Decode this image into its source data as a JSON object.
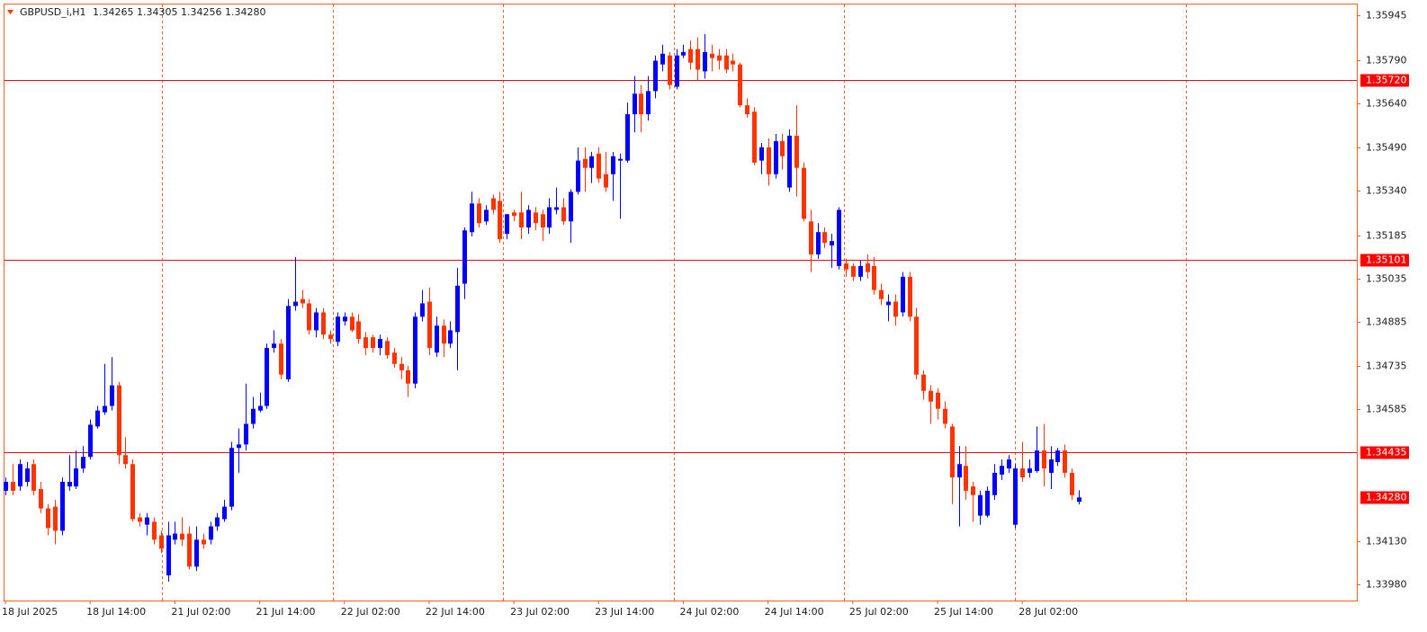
{
  "chart_data": {
    "type": "candlestick",
    "symbol": "GBPUSD_i,H1",
    "quote": "1.34265 1.34305 1.34256 1.34280",
    "categories": [
      "18 Jul 2025",
      null,
      null,
      null,
      null,
      null,
      null,
      null,
      null,
      null,
      null,
      null,
      "18 Jul 14:00",
      null,
      null,
      null,
      null,
      null,
      null,
      null,
      null,
      null,
      null,
      null,
      "21 Jul 02:00",
      null,
      null,
      null,
      null,
      null,
      null,
      null,
      null,
      null,
      null,
      null,
      "21 Jul 14:00",
      null,
      null,
      null,
      null,
      null,
      null,
      null,
      null,
      null,
      null,
      null,
      "22 Jul 02:00",
      null,
      null,
      null,
      null,
      null,
      null,
      null,
      null,
      null,
      null,
      null,
      "22 Jul 14:00",
      null,
      null,
      null,
      null,
      null,
      null,
      null,
      null,
      null,
      null,
      null,
      "23 Jul 02:00",
      null,
      null,
      null,
      null,
      null,
      null,
      null,
      null,
      null,
      null,
      null,
      "23 Jul 14:00",
      null,
      null,
      null,
      null,
      null,
      null,
      null,
      null,
      null,
      null,
      null,
      "24 Jul 02:00",
      null,
      null,
      null,
      null,
      null,
      null,
      null,
      null,
      null,
      null,
      null,
      "24 Jul 14:00",
      null,
      null,
      null,
      null,
      null,
      null,
      null,
      null,
      null,
      null,
      null,
      "25 Jul 02:00",
      null,
      null,
      null,
      null,
      null,
      null,
      null,
      null,
      null,
      null,
      null,
      "25 Jul 14:00",
      null,
      null,
      null,
      null,
      null,
      null,
      null,
      null,
      null,
      null,
      null,
      "28 Jul 02:00",
      null,
      null,
      null,
      null,
      null,
      null,
      null,
      null
    ],
    "open": [
      1.34303,
      1.34334,
      1.34318,
      1.34334,
      1.34395,
      1.34309,
      1.34242,
      1.34248,
      1.34165,
      1.34318,
      1.34318,
      1.3438,
      1.3442,
      1.34525,
      1.34574,
      1.34596,
      1.34667,
      1.34426,
      1.34395,
      1.34211,
      1.34186,
      1.34196,
      1.34149,
      1.34011,
      1.34134,
      1.34155,
      1.34155,
      1.34041,
      1.34134,
      1.34134,
      1.3418,
      1.34205,
      1.34248,
      1.34451,
      1.34463,
      1.34534,
      1.3458,
      1.34596,
      1.34796,
      1.34811,
      1.34688,
      1.34941,
      1.34965,
      1.3495,
      1.34857,
      1.34919,
      1.34842,
      1.34817,
      1.34888,
      1.34904,
      1.34888,
      1.34833,
      1.34833,
      1.34796,
      1.3482,
      1.3478,
      1.34741,
      1.34719,
      1.34673,
      1.34904,
      1.34956,
      1.3478,
      1.34873,
      1.34811,
      1.34851,
      1.35018,
      1.35196,
      1.35295,
      1.35233,
      1.35313,
      1.35304,
      1.3519,
      1.35264,
      1.35264,
      1.35212,
      1.35264,
      1.35258,
      1.35212,
      1.35273,
      1.35282,
      1.35233,
      1.35335,
      1.35449,
      1.35418,
      1.35467,
      1.35396,
      1.35396,
      1.35443,
      1.35443,
      1.35603,
      1.35674,
      1.35603,
      1.35683,
      1.35775,
      1.35806,
      1.35698,
      1.35806,
      1.35828,
      1.35828,
      1.35751,
      1.35812,
      1.35806,
      1.35806,
      1.35788,
      1.35775,
      1.35634,
      1.35612,
      1.35443,
      1.35489,
      1.35396,
      1.3551,
      1.3535,
      1.35529,
      1.35418,
      1.35233,
      1.35119,
      1.35196,
      1.3515,
      1.35079,
      1.35088,
      1.35079,
      1.35042,
      1.35088,
      1.35079,
      1.34996,
      1.34944,
      1.34956,
      1.34919,
      1.35042,
      1.34904,
      1.34704,
      1.34648,
      1.34642,
      1.34586,
      1.34525,
      1.34349,
      1.34389,
      1.34318,
      1.34217,
      1.34217,
      1.34288,
      1.34359,
      1.3438,
      1.34186,
      1.3438,
      1.34365,
      1.34371,
      1.34442,
      1.34365,
      1.34402,
      1.34442,
      1.34365,
      1.34265
    ],
    "high": [
      1.34349,
      1.34395,
      1.34411,
      1.34402,
      1.34411,
      1.34334,
      1.34257,
      1.34272,
      1.34349,
      1.34426,
      1.34442,
      1.34457,
      1.34549,
      1.34596,
      1.34741,
      1.34765,
      1.34679,
      1.34488,
      1.34411,
      1.34226,
      1.34226,
      1.34211,
      1.34165,
      1.34196,
      1.34196,
      1.34211,
      1.3418,
      1.3418,
      1.34155,
      1.34196,
      1.34226,
      1.34272,
      1.34472,
      1.34518,
      1.34673,
      1.34627,
      1.34642,
      1.34811,
      1.34857,
      1.34827,
      1.34965,
      1.3511,
      1.34996,
      1.34965,
      1.34934,
      1.34934,
      1.34857,
      1.34919,
      1.34919,
      1.34919,
      1.34913,
      1.34851,
      1.34842,
      1.34842,
      1.34833,
      1.34796,
      1.34765,
      1.34734,
      1.34919,
      1.34996,
      1.35005,
      1.34904,
      1.34894,
      1.34888,
      1.35073,
      1.35212,
      1.35335,
      1.35313,
      1.35289,
      1.35326,
      1.35335,
      1.35258,
      1.35273,
      1.35335,
      1.35289,
      1.35282,
      1.35273,
      1.35313,
      1.3535,
      1.35313,
      1.35344,
      1.35489,
      1.35489,
      1.35473,
      1.35489,
      1.35473,
      1.35473,
      1.35467,
      1.35643,
      1.35735,
      1.35704,
      1.35735,
      1.35806,
      1.35843,
      1.35818,
      1.35828,
      1.35843,
      1.35858,
      1.35868,
      1.3588,
      1.35843,
      1.35828,
      1.35828,
      1.35812,
      1.35781,
      1.35658,
      1.35627,
      1.35504,
      1.3552,
      1.35535,
      1.35535,
      1.3555,
      1.35634,
      1.35436,
      1.35273,
      1.35227,
      1.35212,
      1.3519,
      1.35282,
      1.35104,
      1.35088,
      1.35098,
      1.35119,
      1.3511,
      1.35018,
      1.34981,
      1.34981,
      1.35058,
      1.35058,
      1.34934,
      1.34719,
      1.34667,
      1.34657,
      1.34611,
      1.34534,
      1.34457,
      1.34457,
      1.34334,
      1.34303,
      1.34318,
      1.34395,
      1.34411,
      1.34426,
      1.34395,
      1.34472,
      1.34411,
      1.34525,
      1.34534,
      1.34457,
      1.34451,
      1.34463,
      1.3438,
      1.34305
    ],
    "low": [
      1.34288,
      1.34288,
      1.34303,
      1.34318,
      1.34288,
      1.34226,
      1.34149,
      1.34118,
      1.34149,
      1.34303,
      1.34309,
      1.34365,
      1.34411,
      1.34518,
      1.34565,
      1.3458,
      1.34395,
      1.3438,
      1.34196,
      1.3418,
      1.34149,
      1.34118,
      1.34088,
      1.33989,
      1.34118,
      1.34112,
      1.34032,
      1.34026,
      1.34103,
      1.34118,
      1.34165,
      1.34196,
      1.34236,
      1.34365,
      1.34442,
      1.34518,
      1.34574,
      1.34586,
      1.3478,
      1.34688,
      1.34679,
      1.34925,
      1.34934,
      1.34842,
      1.34833,
      1.34827,
      1.34811,
      1.34802,
      1.34873,
      1.34851,
      1.34811,
      1.34771,
      1.3478,
      1.34771,
      1.34759,
      1.34728,
      1.34688,
      1.34627,
      1.34657,
      1.34888,
      1.34771,
      1.34765,
      1.34765,
      1.34796,
      1.34719,
      1.34965,
      1.35181,
      1.35212,
      1.35221,
      1.35258,
      1.35159,
      1.35172,
      1.35233,
      1.35172,
      1.3519,
      1.35202,
      1.35165,
      1.3519,
      1.35258,
      1.35221,
      1.35159,
      1.35326,
      1.35335,
      1.35366,
      1.35366,
      1.35335,
      1.35304,
      1.35242,
      1.35436,
      1.35541,
      1.35541,
      1.35581,
      1.35658,
      1.35751,
      1.35689,
      1.35689,
      1.35797,
      1.35757,
      1.3572,
      1.35726,
      1.35751,
      1.35757,
      1.35745,
      1.35751,
      1.35627,
      1.35591,
      1.35427,
      1.35396,
      1.35356,
      1.35381,
      1.35412,
      1.35335,
      1.35319,
      1.35233,
      1.35058,
      1.35104,
      1.35141,
      1.35073,
      1.35067,
      1.35042,
      1.35027,
      1.35027,
      1.35036,
      1.34981,
      1.34944,
      1.34888,
      1.34873,
      1.34904,
      1.34888,
      1.34688,
      1.34617,
      1.34534,
      1.34549,
      1.34518,
      1.34257,
      1.3418,
      1.34272,
      1.34196,
      1.34186,
      1.34211,
      1.34272,
      1.3434,
      1.34365,
      1.34174,
      1.34334,
      1.34349,
      1.34365,
      1.34318,
      1.34309,
      1.34389,
      1.34349,
      1.34272,
      1.34256
    ],
    "close": [
      1.34334,
      1.34303,
      1.34395,
      1.3438,
      1.34303,
      1.34242,
      1.34174,
      1.34165,
      1.34334,
      1.34334,
      1.3438,
      1.3442,
      1.34531,
      1.3458,
      1.34596,
      1.34667,
      1.34426,
      1.34395,
      1.34205,
      1.34196,
      1.34211,
      1.34134,
      1.34103,
      1.34149,
      1.34155,
      1.34134,
      1.34041,
      1.34134,
      1.34118,
      1.3418,
      1.34211,
      1.34248,
      1.34451,
      1.34463,
      1.34534,
      1.34586,
      1.34596,
      1.34796,
      1.34811,
      1.34704,
      1.34941,
      1.34956,
      1.3495,
      1.34857,
      1.34919,
      1.34842,
      1.34827,
      1.34904,
      1.34904,
      1.34857,
      1.34827,
      1.34796,
      1.34796,
      1.34827,
      1.34771,
      1.34741,
      1.34719,
      1.34673,
      1.34904,
      1.3495,
      1.34796,
      1.34873,
      1.34811,
      1.34857,
      1.35011,
      1.35202,
      1.35295,
      1.35227,
      1.35273,
      1.35273,
      1.35172,
      1.35258,
      1.35252,
      1.35212,
      1.35273,
      1.35227,
      1.35212,
      1.35282,
      1.35282,
      1.35233,
      1.35335,
      1.35443,
      1.35418,
      1.35458,
      1.35381,
      1.3535,
      1.35458,
      1.35449,
      1.35603,
      1.35674,
      1.35603,
      1.35683,
      1.35788,
      1.35812,
      1.35704,
      1.35806,
      1.35818,
      1.35781,
      1.35757,
      1.35818,
      1.35797,
      1.35788,
      1.35757,
      1.35775,
      1.35634,
      1.35603,
      1.35436,
      1.35489,
      1.35396,
      1.3551,
      1.35458,
      1.35529,
      1.35418,
      1.35242,
      1.35119,
      1.35196,
      1.35159,
      1.35165,
      1.35273,
      1.35067,
      1.35042,
      1.35079,
      1.35058,
      1.34996,
      1.34965,
      1.34956,
      1.34904,
      1.35042,
      1.34904,
      1.34704,
      1.34648,
      1.34611,
      1.34586,
      1.34534,
      1.34349,
      1.34395,
      1.34303,
      1.34288,
      1.34288,
      1.34303,
      1.34365,
      1.34389,
      1.34411,
      1.3438,
      1.34349,
      1.3438,
      1.34442,
      1.3438,
      1.34411,
      1.34442,
      1.34365,
      1.34288,
      1.3428
    ],
    "up_color": "#0000ff",
    "down_color": "#ff3300",
    "ylim": [
      1.33924,
      1.35982
    ],
    "yticks": [
      1.35945,
      {
        "value": 1.3579,
        "label": "1.35790"
      },
      {
        "value": 1.3564,
        "label": "1.35640"
      },
      {
        "value": 1.3549,
        "label": "1.35490"
      },
      {
        "value": 1.3534,
        "label": "1.35340"
      },
      1.35185,
      1.35035,
      1.34885,
      1.34735,
      1.34585,
      {
        "value": 1.3413,
        "label": "1.34130"
      },
      {
        "value": 1.3398,
        "label": "1.33980"
      }
    ],
    "hlines": [
      {
        "value": 1.3572,
        "label": "1.35720"
      },
      {
        "value": 1.35101,
        "label": "1.35101"
      },
      {
        "value": 1.34435,
        "label": "1.34435"
      }
    ],
    "last_price": {
      "value": 1.3428,
      "label": "1.34280"
    },
    "line_color": "#ff0000"
  }
}
